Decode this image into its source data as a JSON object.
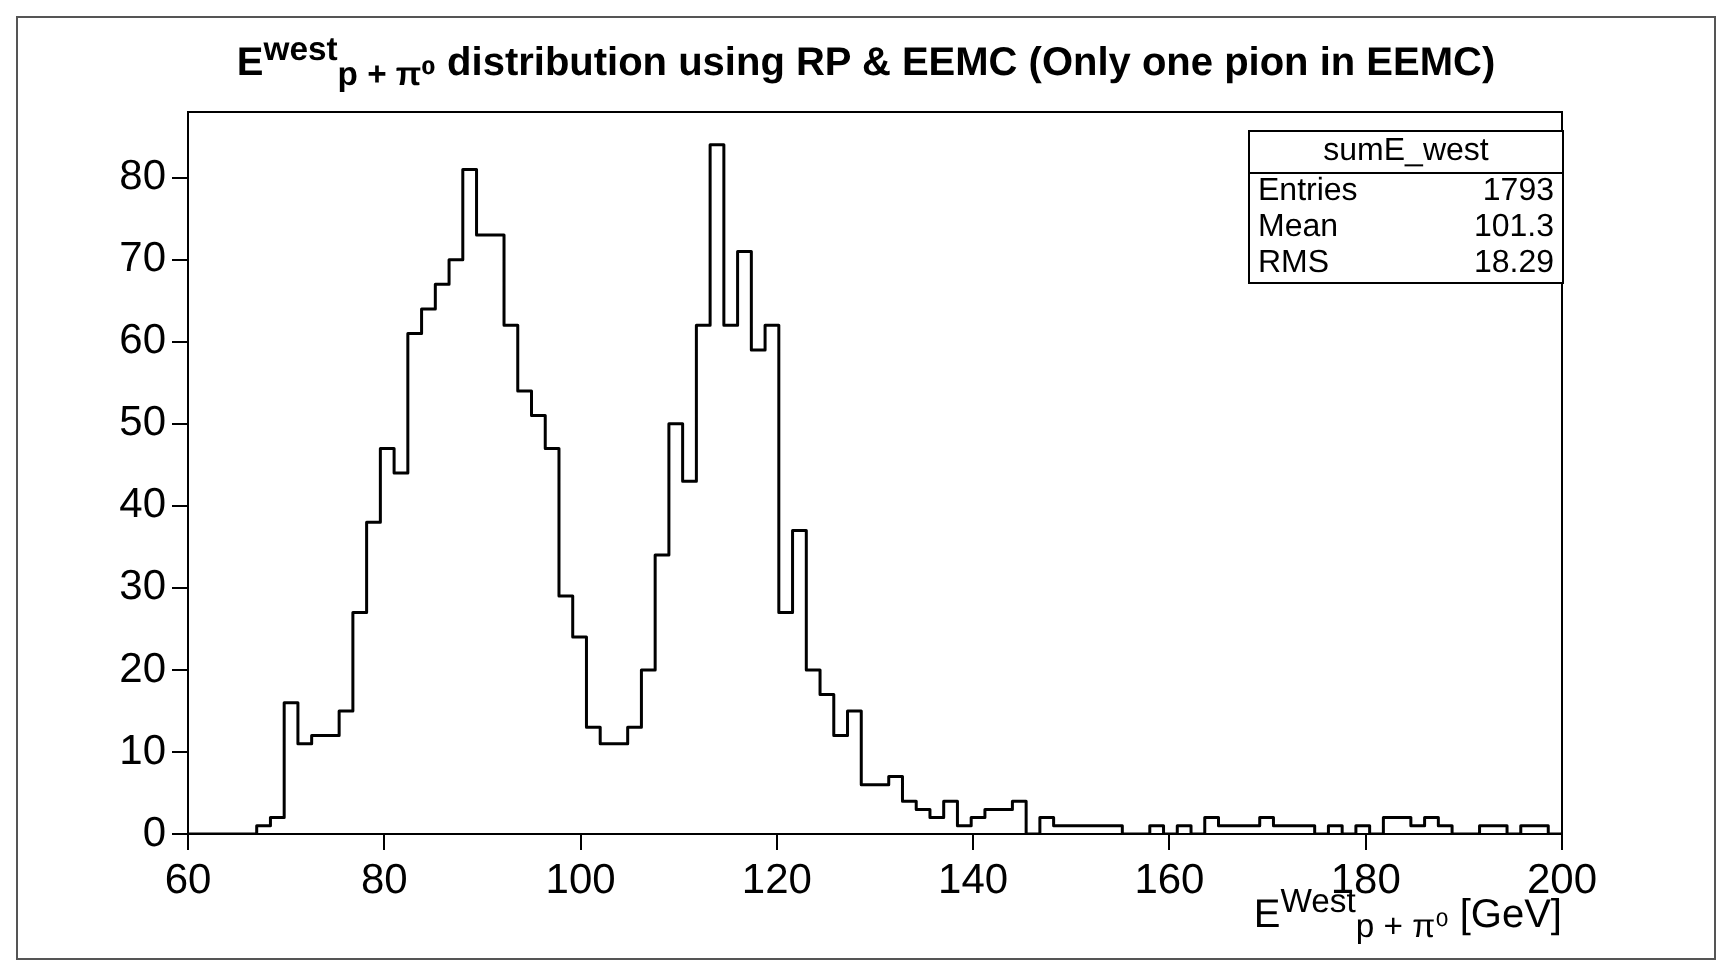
{
  "chart_data": {
    "type": "histogram",
    "title": "E$^{west}$$_{p + π⁰}$ distribution using RP & EEMC (Only one pion in EEMC)",
    "xlabel": "E$^{West}$$_{p + π⁰}$ [GeV]",
    "bins": [
      60,
      61.4,
      62.8,
      64.2,
      65.6,
      67,
      68.4,
      69.8,
      71.2,
      72.6,
      74,
      75.4,
      76.8,
      78.2,
      79.6,
      81,
      82.4,
      83.8,
      85.2,
      86.6,
      88,
      89.4,
      90.8,
      92.2,
      93.6,
      95,
      96.4,
      97.8,
      99.2,
      100.6,
      102,
      103.4,
      104.8,
      106.2,
      107.6,
      109,
      110.4,
      111.8,
      113.2,
      114.6,
      116,
      117.4,
      118.8,
      120.2,
      121.6,
      123,
      124.4,
      125.8,
      127.2,
      128.6,
      130,
      131.4,
      132.8,
      134.2,
      135.6,
      137,
      138.4,
      139.8,
      141.2,
      142.6,
      144,
      145.4,
      146.8,
      148.2,
      149.6,
      151,
      152.4,
      153.8,
      155.2,
      156.6,
      158,
      159.4,
      160.8,
      162.2,
      163.6,
      165,
      166.4,
      167.8,
      169.2,
      170.6,
      172,
      173.4,
      174.8,
      176.2,
      177.6,
      179,
      180.4,
      181.8,
      183.2,
      184.6,
      186,
      187.4,
      188.8,
      190.2,
      191.6,
      193,
      194.4,
      195.8,
      197.2,
      198.6,
      200
    ],
    "values": [
      0,
      0,
      0,
      0,
      0,
      1,
      2,
      16,
      11,
      12,
      12,
      15,
      27,
      38,
      47,
      44,
      61,
      64,
      67,
      70,
      81,
      73,
      73,
      62,
      54,
      51,
      47,
      29,
      24,
      13,
      11,
      11,
      13,
      20,
      34,
      50,
      43,
      62,
      84,
      62,
      71,
      59,
      62,
      27,
      37,
      20,
      17,
      12,
      15,
      6,
      6,
      7,
      4,
      3,
      2,
      4,
      1,
      2,
      3,
      3,
      4,
      0,
      2,
      1,
      1,
      1,
      1,
      1,
      0,
      0,
      1,
      0,
      1,
      0,
      2,
      1,
      1,
      1,
      2,
      1,
      1,
      1,
      0,
      1,
      0,
      1,
      0,
      2,
      2,
      1,
      2,
      1,
      0,
      0,
      1,
      1,
      0,
      1,
      1,
      0
    ],
    "color": "#000000",
    "xlim": [
      60,
      200
    ],
    "xticks": [
      60,
      80,
      100,
      120,
      140,
      160,
      180,
      200
    ],
    "ylim": [
      0,
      88
    ],
    "yticks": [
      0,
      10,
      20,
      30,
      40,
      50,
      60,
      70,
      80
    ],
    "grid": false,
    "legend": false,
    "annotations": [
      "sumE_west",
      "Entries 1793",
      "Mean 101.3",
      "RMS 18.29"
    ]
  }
}
